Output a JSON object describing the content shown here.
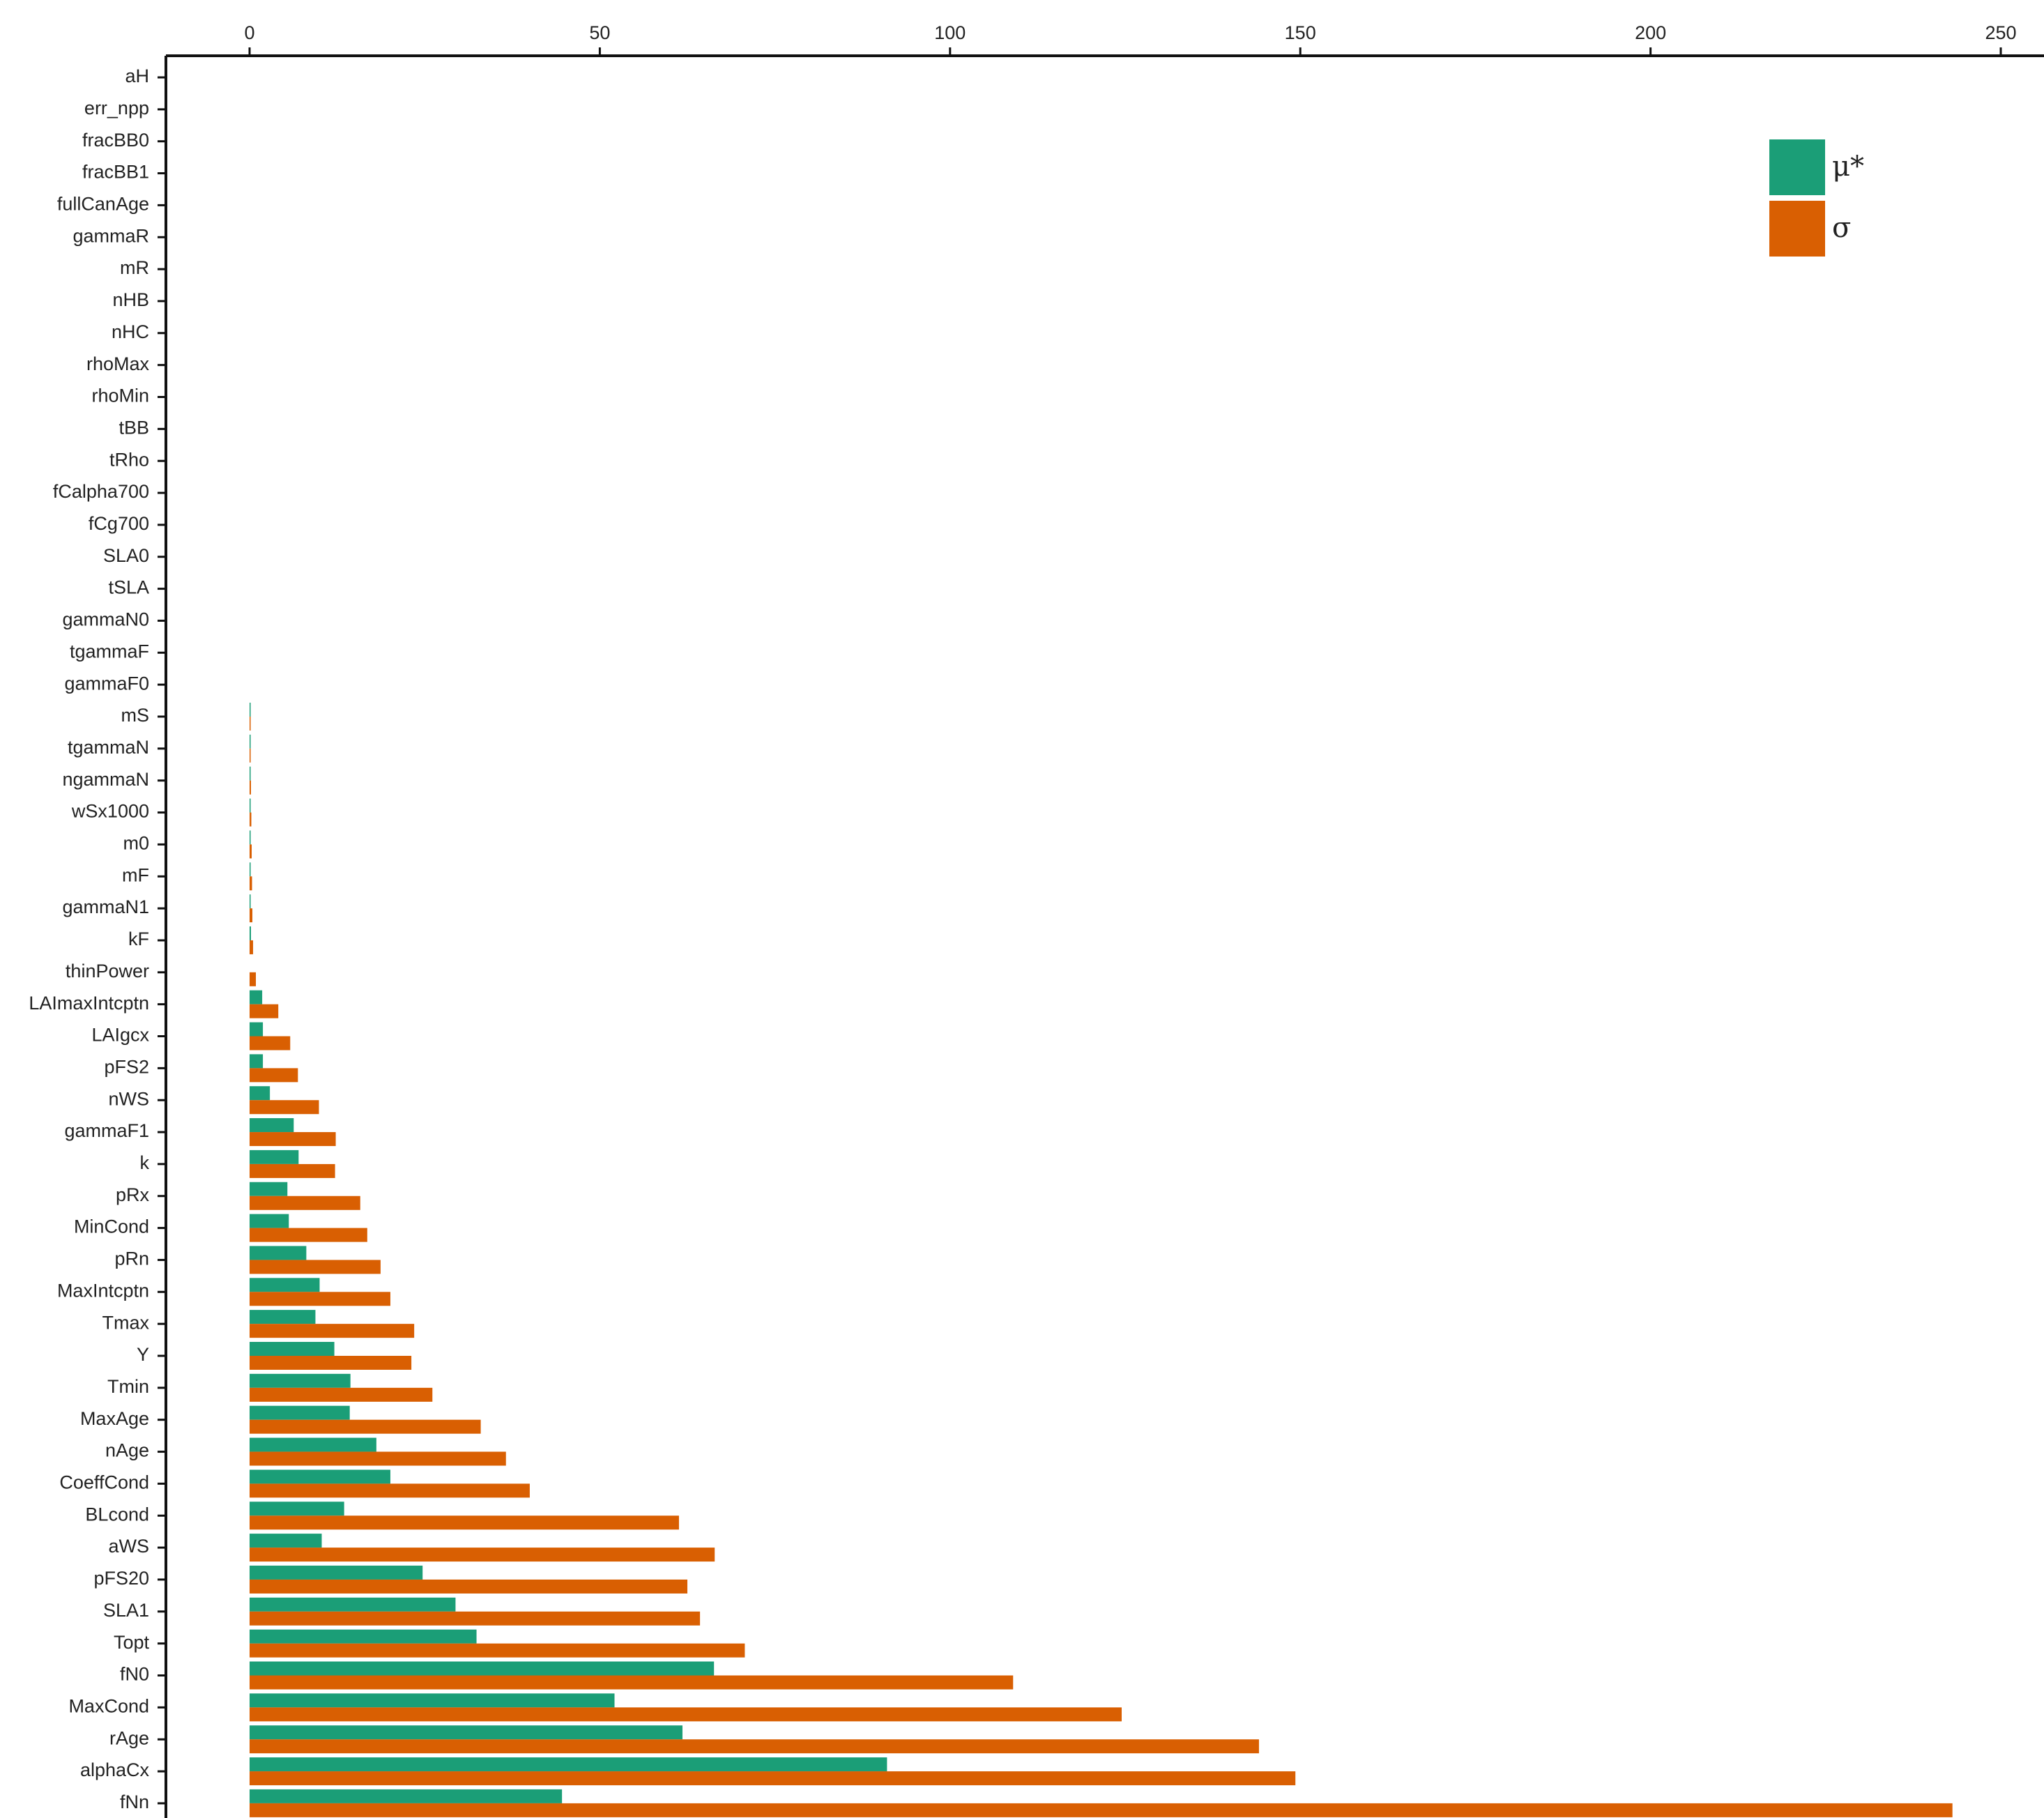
{
  "chart_data": {
    "type": "bar",
    "orientation": "horizontal",
    "title": "",
    "xlabel": "",
    "ylabel": "",
    "x_axis_position": "top",
    "xlim": [
      0,
      250
    ],
    "x_ticks": [
      0,
      50,
      100,
      150,
      200,
      250
    ],
    "grid": false,
    "legend_position": "top-right",
    "categories": [
      "aH",
      "err_npp",
      "fracBB0",
      "fracBB1",
      "fullCanAge",
      "gammaR",
      "mR",
      "nHB",
      "nHC",
      "rhoMax",
      "rhoMin",
      "tBB",
      "tRho",
      "fCalpha700",
      "fCg700",
      "SLA0",
      "tSLA",
      "gammaN0",
      "tgammaF",
      "gammaF0",
      "mS",
      "tgammaN",
      "ngammaN",
      "wSx1000",
      "m0",
      "mF",
      "gammaN1",
      "kF",
      "thinPower",
      "LAImaxIntcptn",
      "LAIgcx",
      "pFS2",
      "nWS",
      "gammaF1",
      "k",
      "pRx",
      "MinCond",
      "pRn",
      "MaxIntcptn",
      "Tmax",
      "Y",
      "Tmin",
      "MaxAge",
      "nAge",
      "CoeffCond",
      "BLcond",
      "aWS",
      "pFS20",
      "SLA1",
      "Topt",
      "fN0",
      "MaxCond",
      "rAge",
      "alphaCx",
      "fNn"
    ],
    "series": [
      {
        "name": "μ*",
        "color": "#1b9e77",
        "values": [
          0,
          0,
          0,
          0,
          0,
          0,
          0,
          0,
          0,
          0,
          0,
          0,
          0,
          0,
          0,
          0,
          0,
          0,
          0,
          0,
          0.05,
          0.05,
          0.05,
          0.05,
          0.1,
          0.1,
          0.1,
          0.2,
          0,
          1.8,
          1.9,
          1.9,
          2.9,
          6.3,
          7.0,
          5.4,
          5.6,
          8.1,
          10.0,
          9.4,
          12.1,
          14.4,
          14.3,
          18.1,
          20.1,
          13.5,
          10.3,
          24.7,
          29.4,
          32.4,
          66.3,
          52.1,
          61.8,
          91.0,
          44.6
        ]
      },
      {
        "name": "σ",
        "color": "#d95f02",
        "values": [
          0,
          0,
          0,
          0,
          0,
          0,
          0,
          0,
          0,
          0,
          0,
          0,
          0,
          0,
          0,
          0,
          0,
          0,
          0,
          0,
          0.1,
          0.15,
          0.2,
          0.25,
          0.3,
          0.35,
          0.4,
          0.5,
          0.9,
          4.1,
          5.8,
          6.9,
          9.9,
          12.3,
          12.2,
          15.8,
          16.8,
          18.7,
          20.1,
          23.5,
          23.1,
          26.1,
          33.0,
          36.6,
          40.0,
          61.3,
          66.4,
          62.5,
          64.3,
          70.7,
          109.0,
          124.5,
          144.1,
          149.3,
          243.1
        ]
      }
    ]
  }
}
